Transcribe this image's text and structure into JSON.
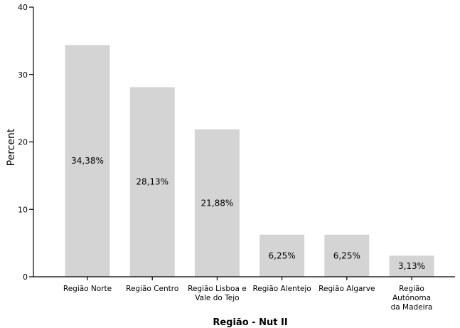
{
  "chart_data": {
    "type": "bar",
    "categories": [
      [
        "Região Norte"
      ],
      [
        "Região Centro"
      ],
      [
        "Região Lisboa e",
        "Vale do Tejo"
      ],
      [
        "Região Alentejo"
      ],
      [
        "Região Algarve"
      ],
      [
        "Região",
        "Autónoma",
        "da Madeira"
      ]
    ],
    "values": [
      34.38,
      28.13,
      21.88,
      6.25,
      6.25,
      3.13
    ],
    "data_labels": [
      "34,38%",
      "28,13%",
      "21,88%",
      "6,25%",
      "6,25%",
      "3,13%"
    ],
    "xlabel": "Região - Nut II",
    "ylabel": "Percent",
    "ylim": [
      0,
      40
    ],
    "yticks": [
      0,
      10,
      20,
      30,
      40
    ],
    "grid": false,
    "colors": {
      "bar": "#d4d4d4",
      "axis": "#000000"
    }
  }
}
